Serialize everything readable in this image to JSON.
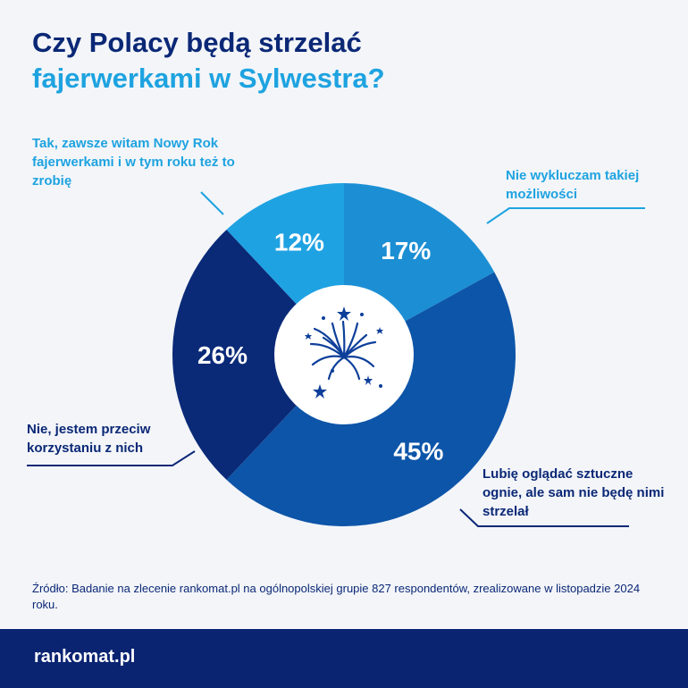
{
  "title": {
    "line1": "Czy Polacy będą strzelać",
    "line2": "fajerwerkami w Sylwestra?"
  },
  "chart_data": {
    "type": "pie",
    "variant": "donut",
    "title": "Czy Polacy będą strzelać fajerwerkami w Sylwestra?",
    "slices": [
      {
        "label": "Nie wykluczam takiej możliwości",
        "value": 17,
        "value_label": "17%",
        "color": "#1c8fd4"
      },
      {
        "label": "Lubię oglądać sztuczne ognie, ale sam nie będę nimi strzelał",
        "value": 45,
        "value_label": "45%",
        "color": "#0d55a8"
      },
      {
        "label": "Nie, jestem przeciw korzystaniu z nich",
        "value": 26,
        "value_label": "26%",
        "color": "#0a2a78"
      },
      {
        "label": "Tak, zawsze witam Nowy Rok fajerwerkami i w tym roku też to zrobię",
        "value": 12,
        "value_label": "12%",
        "color": "#1fa2e2"
      }
    ]
  },
  "labels": {
    "tak": "Tak, zawsze witam Nowy Rok fajerwerkami i w tym roku też to zrobię",
    "nie_wykluczam": "Nie wykluczam takiej możliwości",
    "nie": "Nie, jestem przeciw korzystaniu z nich",
    "lubie": "Lubię oglądać sztuczne ognie, ale sam nie będę nimi strzelał"
  },
  "source": "Źródło: Badanie na zlecenie rankomat.pl na ogólnopolskiej grupie 827 respondentów, zrealizowane w listopadzie 2024 roku.",
  "footer": {
    "logo": "rankomat.pl"
  },
  "colors": {
    "navy": "#0b2876",
    "light_blue": "#1ea3e0",
    "footer_bg": "#0a2472"
  }
}
